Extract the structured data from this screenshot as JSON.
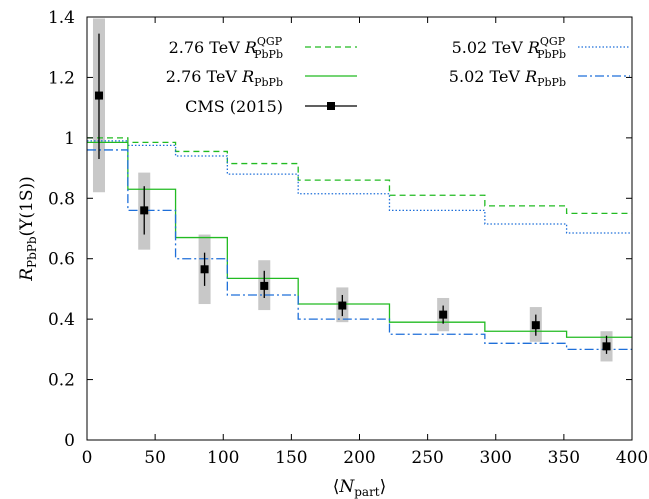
{
  "chart_data": {
    "type": "line",
    "x_axis": {
      "min": 0,
      "max": 400,
      "ticks": [
        0,
        50,
        100,
        150,
        200,
        250,
        300,
        350,
        400
      ],
      "label_parts": {
        "pre": "⟨",
        "main": "N",
        "sub": "part",
        "post": "⟩"
      }
    },
    "y_axis": {
      "min": 0,
      "max": 1.4,
      "ticks": [
        0,
        0.2,
        0.4,
        0.6,
        0.8,
        1,
        1.2,
        1.4
      ],
      "tick_labels": [
        "0",
        "0.2",
        "0.4",
        "0.6",
        "0.8",
        "1",
        "1.2",
        "1.4"
      ],
      "label_parts": {
        "main": "R",
        "sub": "PbPb",
        "post": "(Υ(1S))"
      }
    },
    "legend": {
      "placement": "top",
      "entries": [
        {
          "id": "s276_qgp",
          "text": "2.76 TeV",
          "sym_main": "R",
          "sym_sub": "PbPb",
          "sym_sup": "QGP"
        },
        {
          "id": "s502_qgp",
          "text": "5.02 TeV",
          "sym_main": "R",
          "sym_sub": "PbPb",
          "sym_sup": "QGP"
        },
        {
          "id": "s276",
          "text": "2.76 TeV",
          "sym_main": "R",
          "sym_sub": "PbPb",
          "sym_sup": ""
        },
        {
          "id": "s502",
          "text": "5.02 TeV",
          "sym_main": "R",
          "sym_sub": "PbPb",
          "sym_sup": ""
        },
        {
          "id": "cms",
          "text": "CMS (2015)",
          "sym_main": "",
          "sym_sub": "",
          "sym_sup": ""
        }
      ]
    },
    "bin_edges": [
      0,
      30,
      65,
      103,
      155,
      222,
      292,
      352,
      400
    ],
    "series": [
      {
        "id": "s276_qgp",
        "color": "#22bb22",
        "dash": "dashed",
        "values": [
          1.0,
          0.985,
          0.955,
          0.915,
          0.86,
          0.81,
          0.775,
          0.75
        ]
      },
      {
        "id": "s502_qgp",
        "color": "#1e6fd9",
        "dash": "dotted",
        "values": [
          0.99,
          0.975,
          0.94,
          0.88,
          0.815,
          0.76,
          0.715,
          0.685
        ]
      },
      {
        "id": "s276",
        "color": "#22bb22",
        "dash": "solid",
        "values": [
          0.985,
          0.83,
          0.67,
          0.535,
          0.45,
          0.39,
          0.36,
          0.34
        ]
      },
      {
        "id": "s502",
        "color": "#1e6fd9",
        "dash": "dashdot",
        "values": [
          0.96,
          0.76,
          0.6,
          0.48,
          0.4,
          0.35,
          0.32,
          0.3
        ]
      }
    ],
    "cms_points": [
      {
        "x": 8.8,
        "y": 1.14,
        "stat_lo": 0.93,
        "stat_hi": 1.345,
        "syst_lo": 0.82,
        "syst_hi": 1.395
      },
      {
        "x": 42.0,
        "y": 0.76,
        "stat_lo": 0.68,
        "stat_hi": 0.84,
        "syst_lo": 0.63,
        "syst_hi": 0.885
      },
      {
        "x": 86.3,
        "y": 0.565,
        "stat_lo": 0.51,
        "stat_hi": 0.62,
        "syst_lo": 0.45,
        "syst_hi": 0.68
      },
      {
        "x": 130.1,
        "y": 0.51,
        "stat_lo": 0.47,
        "stat_hi": 0.56,
        "syst_lo": 0.43,
        "syst_hi": 0.595
      },
      {
        "x": 187.4,
        "y": 0.445,
        "stat_lo": 0.41,
        "stat_hi": 0.48,
        "syst_lo": 0.39,
        "syst_hi": 0.505
      },
      {
        "x": 261.4,
        "y": 0.415,
        "stat_lo": 0.385,
        "stat_hi": 0.445,
        "syst_lo": 0.36,
        "syst_hi": 0.47
      },
      {
        "x": 329.4,
        "y": 0.38,
        "stat_lo": 0.345,
        "stat_hi": 0.415,
        "syst_lo": 0.325,
        "syst_hi": 0.44
      },
      {
        "x": 381.3,
        "y": 0.31,
        "stat_lo": 0.285,
        "stat_hi": 0.345,
        "syst_lo": 0.26,
        "syst_hi": 0.36
      }
    ],
    "cms_style": {
      "marker_color": "#000000",
      "syst_color": "#c8c8c8"
    },
    "grid": false
  }
}
